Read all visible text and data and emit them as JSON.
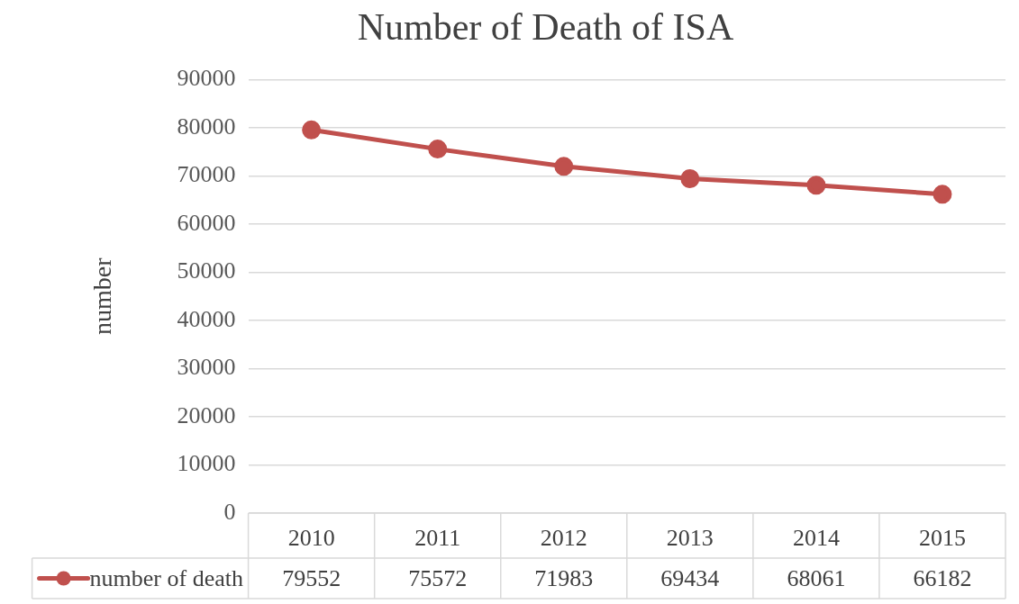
{
  "chart_data": {
    "type": "line",
    "title": "Number of Death of ISA",
    "ylabel": "number",
    "categories": [
      "2010",
      "2011",
      "2012",
      "2013",
      "2014",
      "2015"
    ],
    "series": [
      {
        "name": "number of death",
        "color": "#c0504d",
        "values": [
          79552,
          75572,
          71983,
          69434,
          68061,
          66182
        ]
      }
    ],
    "ylim": [
      0,
      90000
    ],
    "yticks": [
      0,
      10000,
      20000,
      30000,
      40000,
      50000,
      60000,
      70000,
      80000,
      90000
    ],
    "grid": "y",
    "legend": "bottom",
    "marker": "circle",
    "line_style": "solid",
    "data_labels": true
  }
}
